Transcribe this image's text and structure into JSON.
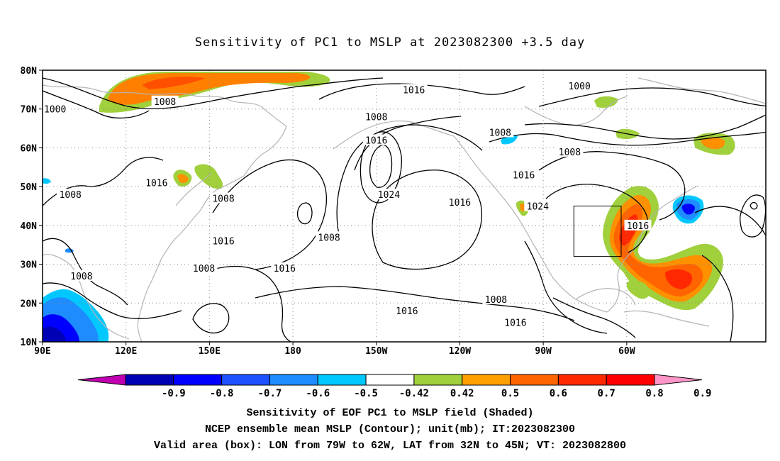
{
  "title": "Sensitivity of PC1 to MSLP at 2023082300 +3.5 day",
  "map": {
    "lat_labels": [
      "80N",
      "70N",
      "60N",
      "50N",
      "40N",
      "30N",
      "20N",
      "10N"
    ],
    "lon_labels": [
      "90E",
      "120E",
      "150E",
      "180",
      "150W",
      "120W",
      "90W",
      "60W"
    ],
    "contour_labels": [
      {
        "text": "1000",
        "lon": 94.5,
        "lat": 70
      },
      {
        "text": "1008",
        "lon": 134,
        "lat": 72
      },
      {
        "text": "1016",
        "lon": 223.5,
        "lat": 75
      },
      {
        "text": "1008",
        "lon": 210,
        "lat": 68
      },
      {
        "text": "1008",
        "lon": 254.5,
        "lat": 64
      },
      {
        "text": "1000",
        "lon": 283,
        "lat": 76
      },
      {
        "text": "1008",
        "lon": 100,
        "lat": 48
      },
      {
        "text": "1016",
        "lon": 131,
        "lat": 51
      },
      {
        "text": "1008",
        "lon": 155,
        "lat": 47
      },
      {
        "text": "1016",
        "lon": 210,
        "lat": 62
      },
      {
        "text": "1024",
        "lon": 214.5,
        "lat": 48
      },
      {
        "text": "1016",
        "lon": 240,
        "lat": 46
      },
      {
        "text": "1016",
        "lon": 263,
        "lat": 53
      },
      {
        "text": "1008",
        "lon": 279.5,
        "lat": 59
      },
      {
        "text": "1016",
        "lon": 155,
        "lat": 36
      },
      {
        "text": "1008",
        "lon": 193,
        "lat": 37
      },
      {
        "text": "1024",
        "lon": 268,
        "lat": 45
      },
      {
        "text": "1016",
        "lon": 304,
        "lat": 40
      },
      {
        "text": "1008",
        "lon": 104,
        "lat": 27
      },
      {
        "text": "1008",
        "lon": 148,
        "lat": 29
      },
      {
        "text": "1016",
        "lon": 177,
        "lat": 29
      },
      {
        "text": "1016",
        "lon": 221,
        "lat": 18
      },
      {
        "text": "1008",
        "lon": 253,
        "lat": 21
      },
      {
        "text": "1016",
        "lon": 260,
        "lat": 15
      }
    ],
    "valid_box": {
      "lon_w": 281,
      "lon_e": 298,
      "lat_s": 32,
      "lat_n": 45
    }
  },
  "colorbar": {
    "labels": [
      "-0.9",
      "-0.8",
      "-0.7",
      "-0.6",
      "-0.5",
      "-0.42",
      "0.42",
      "0.5",
      "0.6",
      "0.7",
      "0.8",
      "0.9"
    ],
    "colors": [
      "#c000b0",
      "#0000b4",
      "#0000ff",
      "#1e50ff",
      "#1e8cff",
      "#00c8ff",
      "#ffffff",
      "#a0d03c",
      "#ffa000",
      "#ff6400",
      "#ff2800",
      "#ff0000",
      "#ff96c8"
    ]
  },
  "captions": [
    "Sensitivity of EOF PC1 to MSLP field (Shaded)",
    "NCEP ensemble mean MSLP (Contour); unit(mb); IT:2023082300",
    "Valid area (box): LON from 79W to 62W, LAT from 32N to 45N; VT: 2023082800"
  ]
}
